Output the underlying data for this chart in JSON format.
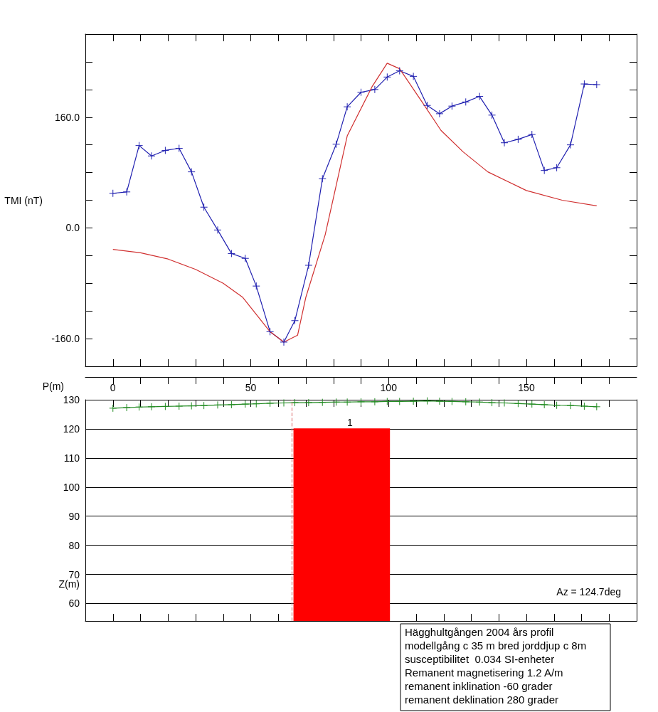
{
  "chart_data": [
    {
      "type": "line",
      "ylabel": "TMI (nT)",
      "xlim": [
        -10,
        190
      ],
      "xticks": [
        0,
        {
          "value": 10,
          "label": null
        },
        {
          "value": 20,
          "label": null
        },
        {
          "value": 30,
          "label": null
        },
        {
          "value": 40,
          "label": null
        },
        50,
        {
          "value": 60,
          "label": null
        },
        {
          "value": 70,
          "label": null
        },
        {
          "value": 80,
          "label": null
        },
        {
          "value": 90,
          "label": null
        },
        100,
        {
          "value": 110,
          "label": null
        },
        {
          "value": 120,
          "label": null
        },
        {
          "value": 130,
          "label": null
        },
        {
          "value": 140,
          "label": null
        },
        150,
        {
          "value": 160,
          "label": null
        },
        {
          "value": 170,
          "label": null
        },
        {
          "value": 180,
          "label": null
        }
      ],
      "ylim": [
        -200,
        280
      ],
      "yticks": [
        {
          "value": -200,
          "label": null
        },
        {
          "value": -160,
          "label": "-160.0"
        },
        {
          "value": -120,
          "label": null
        },
        {
          "value": -80,
          "label": null
        },
        {
          "value": -40,
          "label": null
        },
        {
          "value": 0,
          "label": "0.0"
        },
        {
          "value": 40,
          "label": null
        },
        {
          "value": 80,
          "label": null
        },
        {
          "value": 120,
          "label": null
        },
        {
          "value": 160,
          "label": "160.0"
        },
        {
          "value": 200,
          "label": null
        },
        {
          "value": 240,
          "label": null
        },
        {
          "value": 280,
          "label": null
        }
      ],
      "tick_labels": "y",
      "grid": false,
      "series": [
        {
          "type": "line",
          "color": "#2020b0",
          "marker": "cross",
          "x": [
            0,
            5,
            9.5,
            14,
            19,
            24,
            28.5,
            33,
            38,
            43,
            48,
            52,
            57,
            62,
            66,
            71,
            76,
            81,
            85,
            90,
            95,
            99.5,
            104,
            109,
            114,
            118.5,
            123,
            128,
            133,
            137.5,
            142,
            147,
            152,
            156.5,
            161,
            166,
            171,
            175.5
          ],
          "values": [
            50,
            52,
            119,
            104,
            112,
            115,
            81,
            30,
            -3,
            -37,
            -44,
            -84,
            -150,
            -165,
            -134,
            -54,
            71,
            121,
            175,
            196,
            200,
            218,
            227,
            219,
            177,
            165,
            176,
            182,
            190,
            163,
            123,
            128,
            135,
            83,
            87,
            120,
            208,
            207
          ]
        },
        {
          "type": "line",
          "color": "#d03030",
          "marker": "none",
          "x": [
            0,
            10,
            20,
            30,
            40,
            47,
            53,
            57,
            62,
            67,
            70,
            77,
            85,
            94,
            99.5,
            104,
            112.5,
            119,
            127,
            136,
            150,
            163,
            175.5
          ],
          "values": [
            -31,
            -36,
            -45,
            -60,
            -80,
            -100,
            -130,
            -150,
            -165,
            -155,
            -100,
            -10,
            133,
            204,
            238,
            230,
            180,
            141,
            110,
            81,
            54,
            40,
            32
          ]
        }
      ]
    },
    {
      "type": "line",
      "xlabel": "P(m)",
      "ylabel": "Z(m)",
      "xlim": [
        -10,
        190
      ],
      "xticks": [
        0,
        {
          "value": 10,
          "label": null
        },
        {
          "value": 20,
          "label": null
        },
        {
          "value": 30,
          "label": null
        },
        {
          "value": 40,
          "label": null
        },
        50,
        {
          "value": 60,
          "label": null
        },
        {
          "value": 70,
          "label": null
        },
        {
          "value": 80,
          "label": null
        },
        {
          "value": 90,
          "label": null
        },
        100,
        {
          "value": 110,
          "label": null
        },
        {
          "value": 120,
          "label": null
        },
        {
          "value": 130,
          "label": null
        },
        {
          "value": 140,
          "label": null
        },
        150,
        {
          "value": 160,
          "label": null
        },
        {
          "value": 170,
          "label": null
        },
        {
          "value": 180,
          "label": null
        }
      ],
      "ylim": [
        54,
        130
      ],
      "yticks": [
        60,
        70,
        80,
        90,
        100,
        110,
        120,
        130
      ],
      "grid": "y",
      "series": [
        {
          "type": "line",
          "color": "#228b22",
          "marker": "cross",
          "x": [
            0,
            5,
            9.5,
            14,
            19,
            24,
            28.5,
            33,
            38,
            43,
            48,
            52,
            57,
            62,
            66,
            71,
            76,
            81,
            85,
            90,
            95,
            99.5,
            104,
            109,
            114,
            118.5,
            123,
            128,
            133,
            137.5,
            142,
            147,
            152,
            156.5,
            161,
            166,
            171,
            175.5
          ],
          "values": [
            127.1,
            127.3,
            127.5,
            127.6,
            127.7,
            127.8,
            127.9,
            128.0,
            128.2,
            128.3,
            128.5,
            128.6,
            128.8,
            128.9,
            129.0,
            129.0,
            129.1,
            129.2,
            129.2,
            129.3,
            129.3,
            129.4,
            129.4,
            129.5,
            129.6,
            129.5,
            129.4,
            129.3,
            129.2,
            129.0,
            128.9,
            128.7,
            128.5,
            128.3,
            128.1,
            128.0,
            127.8,
            127.6
          ]
        },
        {
          "type": "area",
          "color": "#ff0000",
          "marker": "none",
          "x": [
            65.5,
            100.5
          ],
          "values": [
            120,
            120
          ]
        }
      ],
      "ref_lines": [
        {
          "axis": "x",
          "value": 64.8,
          "label": null,
          "color": "#e08080",
          "line_style": "dashed"
        }
      ],
      "annotations": [
        {
          "text": "1",
          "x": 86,
          "y": 120
        },
        "Az = 124.7deg",
        "Hägghultgången 2004 års profil",
        "modellgång c 35 m bred jorddjup c 8m",
        "susceptibilitet  0.034 SI-enheter",
        "Remanent magnetisering 1.2 A/m",
        "remanent inklination -60 grader",
        "remanent deklination 280 grader"
      ]
    }
  ]
}
